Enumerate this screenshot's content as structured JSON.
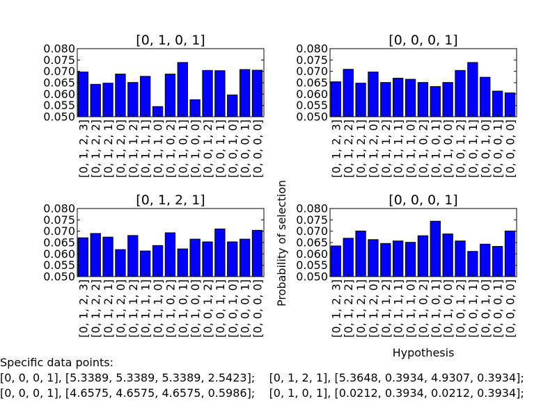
{
  "chart_data": [
    {
      "type": "bar",
      "title": "[0, 1, 0, 1]",
      "categories": [
        "[0, 1, 2, 3]",
        "[0, 1, 2, 2]",
        "[0, 1, 2, 1]",
        "[0, 1, 2, 0]",
        "[0, 1, 1, 2]",
        "[0, 1, 1, 1]",
        "[0, 1, 1, 0]",
        "[0, 1, 0, 2]",
        "[0, 1, 0, 1]",
        "[0, 1, 0, 0]",
        "[0, 0, 1, 2]",
        "[0, 0, 1, 1]",
        "[0, 0, 1, 0]",
        "[0, 0, 0, 1]",
        "[0, 0, 0, 0]"
      ],
      "values": [
        0.0697,
        0.0643,
        0.0648,
        0.0688,
        0.0651,
        0.0678,
        0.0545,
        0.0688,
        0.0739,
        0.0575,
        0.0704,
        0.0703,
        0.0596,
        0.0708,
        0.0705
      ],
      "ylim": [
        0.05,
        0.08
      ],
      "yticks": [
        "0.050",
        "0.055",
        "0.060",
        "0.065",
        "0.070",
        "0.075",
        "0.080"
      ],
      "xlabel": "",
      "ylabel": ""
    },
    {
      "type": "bar",
      "title": "[0, 0, 0, 1]",
      "categories": [
        "[0, 1, 2, 3]",
        "[0, 1, 2, 2]",
        "[0, 1, 2, 1]",
        "[0, 1, 2, 0]",
        "[0, 1, 1, 2]",
        "[0, 1, 1, 1]",
        "[0, 1, 1, 0]",
        "[0, 1, 0, 2]",
        "[0, 1, 0, 1]",
        "[0, 1, 0, 0]",
        "[0, 0, 1, 2]",
        "[0, 0, 1, 1]",
        "[0, 0, 1, 0]",
        "[0, 0, 0, 1]",
        "[0, 0, 0, 0]"
      ],
      "values": [
        0.0654,
        0.0709,
        0.0648,
        0.0697,
        0.0651,
        0.067,
        0.0665,
        0.0651,
        0.0633,
        0.0651,
        0.0704,
        0.0739,
        0.0674,
        0.0613,
        0.0605
      ],
      "ylim": [
        0.05,
        0.08
      ],
      "yticks": [
        "0.050",
        "0.055",
        "0.060",
        "0.065",
        "0.070",
        "0.075",
        "0.080"
      ],
      "xlabel": "",
      "ylabel": ""
    },
    {
      "type": "bar",
      "title": "[0, 1, 2, 1]",
      "categories": [
        "[0, 1, 2, 3]",
        "[0, 1, 2, 2]",
        "[0, 1, 2, 1]",
        "[0, 1, 2, 0]",
        "[0, 1, 1, 2]",
        "[0, 1, 1, 1]",
        "[0, 1, 1, 0]",
        "[0, 1, 0, 2]",
        "[0, 1, 0, 1]",
        "[0, 1, 0, 0]",
        "[0, 0, 1, 2]",
        "[0, 0, 1, 1]",
        "[0, 0, 1, 0]",
        "[0, 0, 0, 1]",
        "[0, 0, 0, 0]"
      ],
      "values": [
        0.0671,
        0.069,
        0.0674,
        0.0619,
        0.0681,
        0.0613,
        0.0637,
        0.0693,
        0.0622,
        0.0665,
        0.0653,
        0.071,
        0.0653,
        0.0665,
        0.0704
      ],
      "ylim": [
        0.05,
        0.08
      ],
      "yticks": [
        "0.050",
        "0.055",
        "0.060",
        "0.065",
        "0.070",
        "0.075",
        "0.080"
      ],
      "xlabel": "",
      "ylabel": ""
    },
    {
      "type": "bar",
      "title": "[0, 0, 0, 1]",
      "categories": [
        "[0, 1, 2, 3]",
        "[0, 1, 2, 2]",
        "[0, 1, 2, 1]",
        "[0, 1, 2, 0]",
        "[0, 1, 1, 2]",
        "[0, 1, 1, 1]",
        "[0, 1, 1, 0]",
        "[0, 1, 0, 2]",
        "[0, 1, 0, 1]",
        "[0, 1, 0, 0]",
        "[0, 0, 1, 2]",
        "[0, 0, 1, 1]",
        "[0, 0, 1, 0]",
        "[0, 0, 0, 1]",
        "[0, 0, 0, 0]"
      ],
      "values": [
        0.0635,
        0.0669,
        0.0701,
        0.0663,
        0.0646,
        0.0657,
        0.0651,
        0.068,
        0.0744,
        0.0688,
        0.0657,
        0.0611,
        0.0643,
        0.0633,
        0.0701
      ],
      "ylim": [
        0.05,
        0.08
      ],
      "yticks": [
        "0.050",
        "0.055",
        "0.060",
        "0.065",
        "0.070",
        "0.075",
        "0.080"
      ],
      "xlabel": "Hypothesis",
      "ylabel": ""
    }
  ],
  "figure": {
    "ylabel": "Probability of selection",
    "bar_color": "#0000ff",
    "edge_color": "#000000"
  },
  "footer": {
    "heading": "Specific data points:",
    "row1": "[0, 0, 0, 1], [5.3389, 5.3389, 5.3389, 2.5423];    [0, 1, 2, 1], [5.3648, 0.3934, 4.9307, 0.3934];",
    "row2": "[0, 0, 0, 1], [4.6575, 4.6575, 4.6575, 0.5986];    [0, 1, 0, 1], [0.0212, 0.3934, 0.0212, 0.3934];"
  }
}
